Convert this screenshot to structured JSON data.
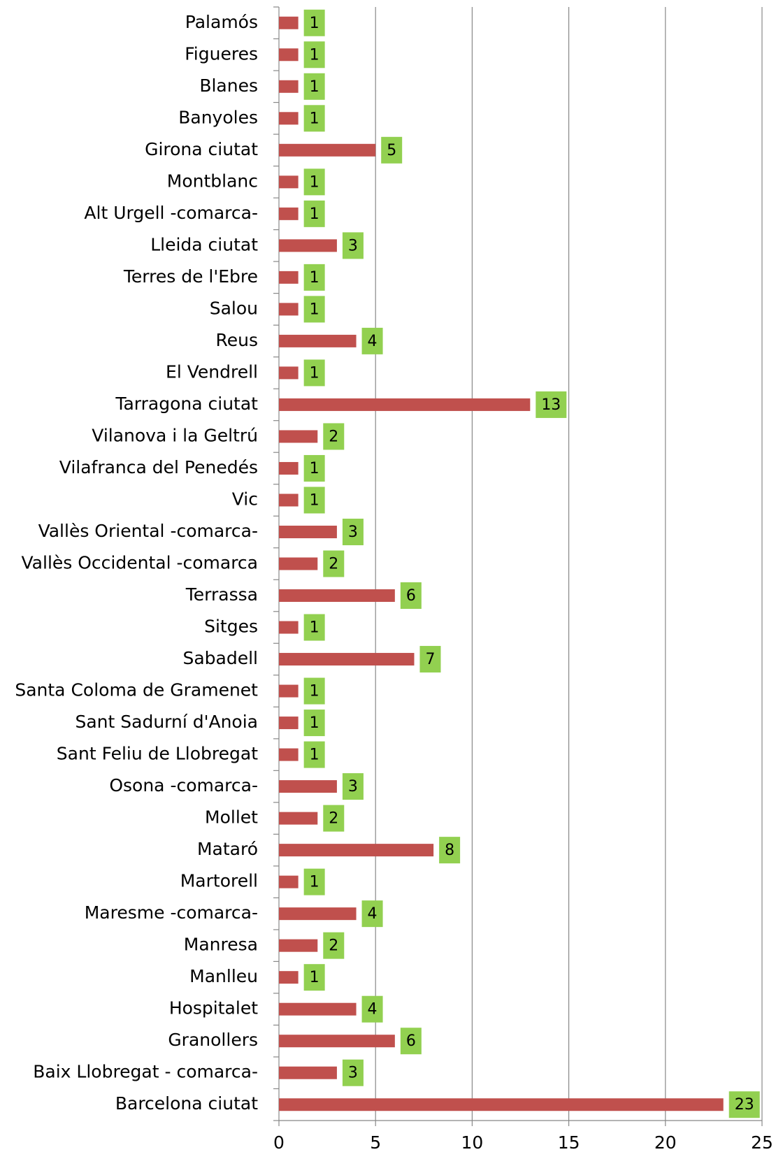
{
  "chart_data": {
    "type": "horizontal_bar",
    "categories": [
      "Palamós",
      "Figueres",
      "Blanes",
      "Banyoles",
      "Girona ciutat",
      "Montblanc",
      "Alt Urgell -comarca-",
      "Lleida ciutat",
      "Terres de l'Ebre",
      "Salou",
      "Reus",
      "El Vendrell",
      "Tarragona ciutat",
      "Vilanova i la Geltrú",
      "Vilafranca del Penedés",
      "Vic",
      "Vallès Oriental -comarca-",
      "Vallès Occidental -comarca",
      "Terrassa",
      "Sitges",
      "Sabadell",
      "Santa Coloma de Gramenet",
      "Sant Sadurní d'Anoia",
      "Sant Feliu de Llobregat",
      "Osona -comarca-",
      "Mollet",
      "Mataró",
      "Martorell",
      "Maresme -comarca-",
      "Manresa",
      "Manlleu",
      "Hospitalet",
      "Granollers",
      "Baix Llobregat - comarca-",
      "Barcelona ciutat"
    ],
    "values": [
      1,
      1,
      1,
      1,
      5,
      1,
      1,
      3,
      1,
      1,
      4,
      1,
      13,
      2,
      1,
      1,
      3,
      2,
      6,
      1,
      7,
      1,
      1,
      1,
      3,
      2,
      8,
      1,
      4,
      2,
      1,
      4,
      6,
      3,
      23
    ],
    "color": "#c0504d",
    "label_color": "#92d050",
    "xlim": [
      0,
      25
    ],
    "xticks": [
      0,
      5,
      10,
      15,
      20,
      25
    ],
    "grid": true
  }
}
